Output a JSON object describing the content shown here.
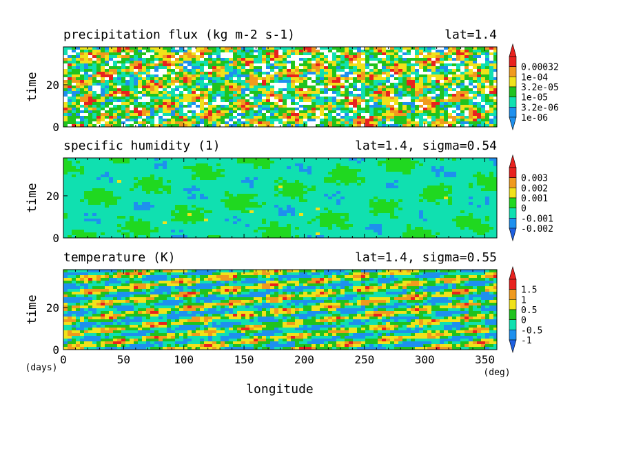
{
  "chart_data": [
    {
      "type": "heatmap",
      "title": "precipitation flux (kg m-2 s-1)",
      "annotation": "lat=1.4",
      "ylabel": "time",
      "ylim": [
        0,
        38
      ],
      "yticks": [
        "0",
        "20"
      ],
      "colorbar": {
        "labels": [
          "0.00032",
          "1e-04",
          "3.2e-05",
          "1e-05",
          "3.2e-06",
          "1e-06"
        ],
        "colors": [
          "#e8221f",
          "#f09a1e",
          "#f0e21a",
          "#20c31e",
          "#10e0b0",
          "#1e90ee"
        ],
        "top_arrow": "#e8221f",
        "bottom_arrow": "#1e90ee"
      },
      "pattern": "scattered",
      "white_background_fraction": 0.18
    },
    {
      "type": "heatmap",
      "title": "specific humidity (1)",
      "annotation": "lat=1.4, sigma=0.54",
      "ylabel": "time",
      "ylim": [
        0,
        38
      ],
      "yticks": [
        "0",
        "20"
      ],
      "colorbar": {
        "labels": [
          "0.003",
          "0.002",
          "0.001",
          "0",
          "-0.001",
          "-0.002"
        ],
        "colors": [
          "#e8221f",
          "#f09a1e",
          "#f0e21a",
          "#20d820",
          "#10e0b0",
          "#1e90ee"
        ],
        "top_arrow": "#e8221f",
        "bottom_arrow": "#1e60e0"
      },
      "pattern": "smooth"
    },
    {
      "type": "heatmap",
      "title": "temperature (K)",
      "annotation": "lat=1.4, sigma=0.55",
      "ylabel": "time",
      "ylim": [
        0,
        38
      ],
      "yticks": [
        "0",
        "20"
      ],
      "xlabel": "longitude",
      "xlim": [
        0,
        360
      ],
      "xticks": [
        "0",
        "50",
        "100",
        "150",
        "200",
        "250",
        "300",
        "350"
      ],
      "x_unit": "(deg)",
      "y_unit": "(days)",
      "colorbar": {
        "labels": [
          "1.5",
          "1",
          "0.5",
          "0",
          "-0.5",
          "-1"
        ],
        "colors": [
          "#e8221f",
          "#f09a1e",
          "#f0e21a",
          "#20c31e",
          "#10e0b0",
          "#1e90ee"
        ],
        "top_arrow": "#e8221f",
        "bottom_arrow": "#1e60e0"
      },
      "pattern": "eastward-waves"
    }
  ]
}
